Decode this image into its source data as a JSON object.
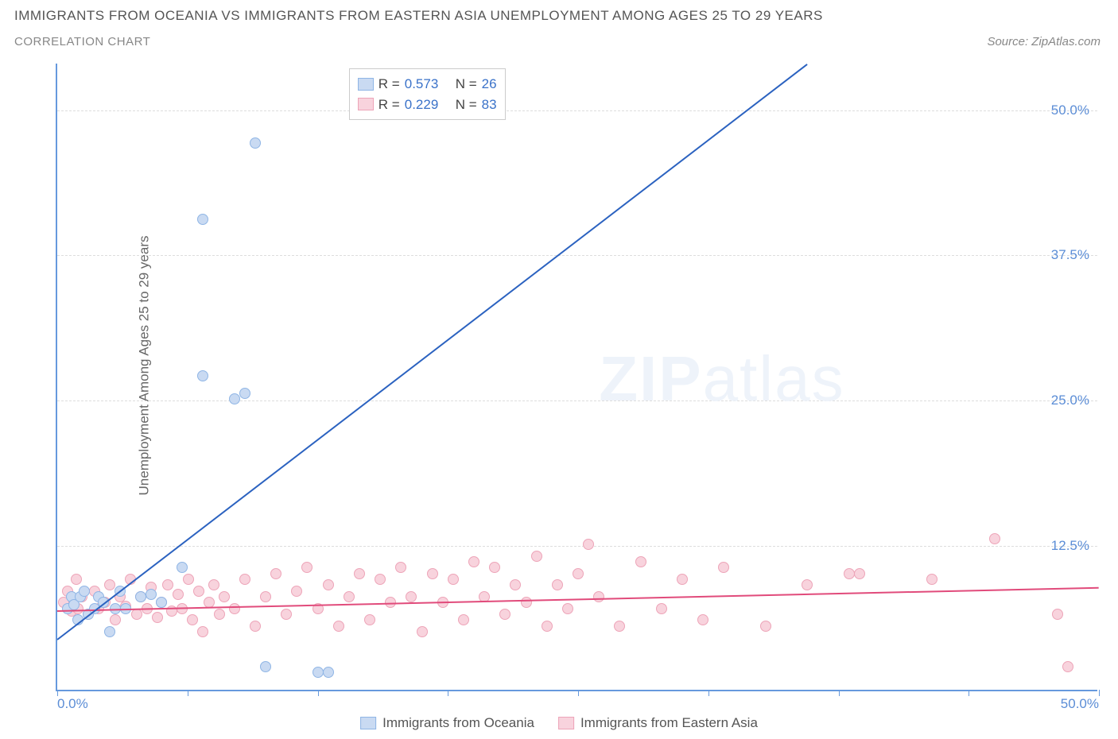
{
  "title": "IMMIGRANTS FROM OCEANIA VS IMMIGRANTS FROM EASTERN ASIA UNEMPLOYMENT AMONG AGES 25 TO 29 YEARS",
  "subtitle": "CORRELATION CHART",
  "source": "Source: ZipAtlas.com",
  "watermark_zip": "ZIP",
  "watermark_atlas": "atlas",
  "ylabel": "Unemployment Among Ages 25 to 29 years",
  "chart": {
    "type": "scatter",
    "xlim": [
      0,
      50
    ],
    "ylim": [
      0,
      54
    ],
    "x_tick_positions": [
      0,
      6.25,
      12.5,
      18.75,
      25,
      31.25,
      37.5,
      43.75,
      50
    ],
    "x_tick_labels_shown": {
      "0": "0.0%",
      "50": "50.0%"
    },
    "y_ticks": [
      12.5,
      25.0,
      37.5,
      50.0
    ],
    "y_tick_labels": [
      "12.5%",
      "25.0%",
      "37.5%",
      "50.0%"
    ],
    "grid_color": "#dddddd",
    "axis_color": "#6699dd",
    "background_color": "#ffffff"
  },
  "series": {
    "oceania": {
      "label": "Immigrants from Oceania",
      "fill": "#c9daf2",
      "stroke": "#8fb5e5",
      "marker_radius": 7,
      "R": "0.573",
      "N": "26",
      "trend": {
        "x1": 0,
        "y1": 4.5,
        "x2": 36,
        "y2": 54,
        "color": "#2b62c0",
        "width": 2
      },
      "points": [
        [
          0.5,
          7.0
        ],
        [
          0.7,
          8.0
        ],
        [
          0.8,
          7.3
        ],
        [
          1.0,
          6.0
        ],
        [
          1.1,
          8.0
        ],
        [
          1.3,
          8.5
        ],
        [
          1.5,
          6.5
        ],
        [
          1.8,
          7.0
        ],
        [
          2.0,
          8.0
        ],
        [
          2.2,
          7.5
        ],
        [
          2.5,
          5.0
        ],
        [
          2.8,
          7.0
        ],
        [
          3.0,
          8.5
        ],
        [
          3.3,
          7.0
        ],
        [
          4.0,
          8.0
        ],
        [
          4.5,
          8.2
        ],
        [
          5.0,
          7.5
        ],
        [
          6.0,
          10.5
        ],
        [
          7.0,
          27.0
        ],
        [
          7.0,
          40.5
        ],
        [
          8.5,
          25.0
        ],
        [
          9.0,
          25.5
        ],
        [
          9.5,
          47.0
        ],
        [
          10.0,
          2.0
        ],
        [
          12.5,
          1.5
        ],
        [
          13.0,
          1.5
        ]
      ]
    },
    "eastern_asia": {
      "label": "Immigrants from Eastern Asia",
      "fill": "#f8d3dd",
      "stroke": "#eda4b8",
      "marker_radius": 7,
      "R": "0.229",
      "N": "83",
      "trend": {
        "x1": 0,
        "y1": 7.0,
        "x2": 50,
        "y2": 9.0,
        "color": "#e14b7b",
        "width": 2
      },
      "points": [
        [
          0.3,
          7.5
        ],
        [
          0.5,
          8.5
        ],
        [
          0.7,
          6.8
        ],
        [
          0.9,
          9.5
        ],
        [
          1.0,
          7.0
        ],
        [
          1.2,
          8.0
        ],
        [
          1.5,
          6.5
        ],
        [
          1.8,
          8.5
        ],
        [
          2.0,
          7.0
        ],
        [
          2.3,
          7.5
        ],
        [
          2.5,
          9.0
        ],
        [
          2.8,
          6.0
        ],
        [
          3.0,
          8.0
        ],
        [
          3.3,
          7.2
        ],
        [
          3.5,
          9.5
        ],
        [
          3.8,
          6.5
        ],
        [
          4.0,
          8.0
        ],
        [
          4.3,
          7.0
        ],
        [
          4.5,
          8.8
        ],
        [
          4.8,
          6.2
        ],
        [
          5.0,
          7.5
        ],
        [
          5.3,
          9.0
        ],
        [
          5.5,
          6.8
        ],
        [
          5.8,
          8.2
        ],
        [
          6.0,
          7.0
        ],
        [
          6.3,
          9.5
        ],
        [
          6.5,
          6.0
        ],
        [
          6.8,
          8.5
        ],
        [
          7.0,
          5.0
        ],
        [
          7.3,
          7.5
        ],
        [
          7.5,
          9.0
        ],
        [
          7.8,
          6.5
        ],
        [
          8.0,
          8.0
        ],
        [
          8.5,
          7.0
        ],
        [
          9.0,
          9.5
        ],
        [
          9.5,
          5.5
        ],
        [
          10.0,
          8.0
        ],
        [
          10.5,
          10.0
        ],
        [
          11.0,
          6.5
        ],
        [
          11.5,
          8.5
        ],
        [
          12.0,
          10.5
        ],
        [
          12.5,
          7.0
        ],
        [
          13.0,
          9.0
        ],
        [
          13.5,
          5.5
        ],
        [
          14.0,
          8.0
        ],
        [
          14.5,
          10.0
        ],
        [
          15.0,
          6.0
        ],
        [
          15.5,
          9.5
        ],
        [
          16.0,
          7.5
        ],
        [
          16.5,
          10.5
        ],
        [
          17.0,
          8.0
        ],
        [
          17.5,
          5.0
        ],
        [
          18.0,
          10.0
        ],
        [
          18.5,
          7.5
        ],
        [
          19.0,
          9.5
        ],
        [
          19.5,
          6.0
        ],
        [
          20.0,
          11.0
        ],
        [
          20.5,
          8.0
        ],
        [
          21.0,
          10.5
        ],
        [
          21.5,
          6.5
        ],
        [
          22.0,
          9.0
        ],
        [
          22.5,
          7.5
        ],
        [
          23.0,
          11.5
        ],
        [
          23.5,
          5.5
        ],
        [
          24.0,
          9.0
        ],
        [
          24.5,
          7.0
        ],
        [
          25.0,
          10.0
        ],
        [
          25.5,
          12.5
        ],
        [
          26.0,
          8.0
        ],
        [
          27.0,
          5.5
        ],
        [
          28.0,
          11.0
        ],
        [
          29.0,
          7.0
        ],
        [
          30.0,
          9.5
        ],
        [
          31.0,
          6.0
        ],
        [
          32.0,
          10.5
        ],
        [
          34.0,
          5.5
        ],
        [
          36.0,
          9.0
        ],
        [
          38.0,
          10.0
        ],
        [
          38.5,
          10.0
        ],
        [
          42.0,
          9.5
        ],
        [
          45.0,
          13.0
        ],
        [
          48.0,
          6.5
        ],
        [
          48.5,
          2.0
        ]
      ]
    }
  },
  "legend_layout": {
    "R_label": "R =",
    "N_label": "N ="
  }
}
